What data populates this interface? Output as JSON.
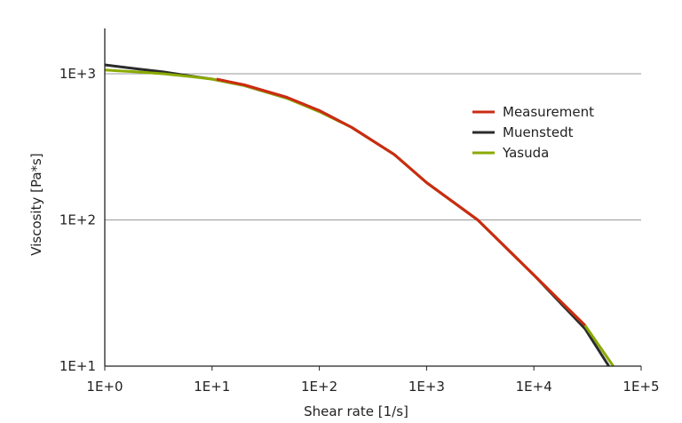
{
  "chart_data": {
    "type": "line",
    "title": "",
    "xlabel": "Shear rate [1/s]",
    "ylabel": "Viscosity [Pa*s]",
    "xscale": "log",
    "yscale": "log",
    "xlim": [
      1,
      100000
    ],
    "ylim": [
      10,
      2000
    ],
    "x_ticks": [
      {
        "value": 1,
        "label": "1E+0"
      },
      {
        "value": 10,
        "label": "1E+1"
      },
      {
        "value": 100,
        "label": "1E+2"
      },
      {
        "value": 1000,
        "label": "1E+3"
      },
      {
        "value": 10000,
        "label": "1E+4"
      },
      {
        "value": 100000,
        "label": "1E+5"
      }
    ],
    "y_ticks": [
      {
        "value": 10,
        "label": "1E+1"
      },
      {
        "value": 100,
        "label": "1E+2"
      },
      {
        "value": 1000,
        "label": "1E+3"
      }
    ],
    "grid": "horizontal",
    "legend_position": "right",
    "series": [
      {
        "name": "Muenstedt",
        "color": "#2b2b2b",
        "x": [
          1,
          2,
          3.5,
          6,
          10,
          20,
          50,
          100,
          200,
          500,
          1000,
          3000,
          10000,
          30000,
          50000
        ],
        "y": [
          1150,
          1080,
          1030,
          970,
          920,
          830,
          680,
          560,
          430,
          280,
          180,
          100,
          42,
          18,
          10
        ]
      },
      {
        "name": "Yasuda",
        "color": "#8aaa00",
        "x": [
          1,
          2,
          3.5,
          6,
          10,
          20,
          50,
          100,
          200,
          500,
          1000,
          3000,
          10000,
          30000,
          55000
        ],
        "y": [
          1060,
          1030,
          1000,
          960,
          920,
          830,
          680,
          550,
          430,
          280,
          180,
          100,
          42,
          19,
          10
        ]
      },
      {
        "name": "Measurement",
        "color": "#cc2a12",
        "x": [
          11,
          20,
          50,
          100,
          200,
          500,
          1000,
          3000,
          10000,
          30000
        ],
        "y": [
          920,
          840,
          690,
          560,
          430,
          280,
          180,
          100,
          42,
          19
        ]
      }
    ],
    "legend_order": [
      "Measurement",
      "Muenstedt",
      "Yasuda"
    ]
  }
}
